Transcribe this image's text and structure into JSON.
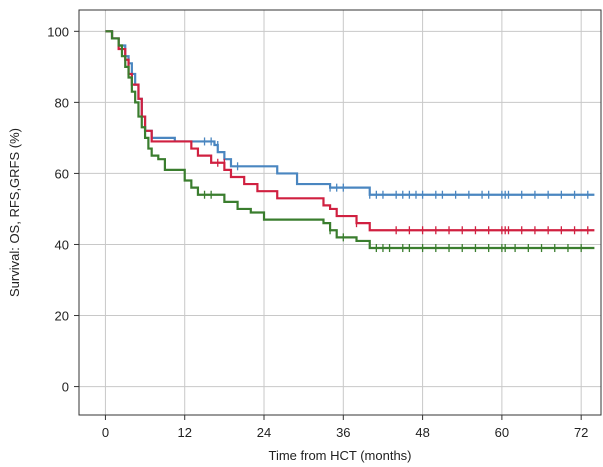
{
  "chart_data": {
    "type": "line",
    "title": "",
    "xlabel": "Time from HCT (months)",
    "ylabel": "Survival: OS, RFS,GRFS (%)",
    "xlim": [
      -4,
      75
    ],
    "ylim": [
      -8,
      106
    ],
    "xticks": [
      0,
      12,
      24,
      36,
      48,
      60,
      72
    ],
    "yticks": [
      0,
      20,
      40,
      60,
      80,
      100
    ],
    "grid": true,
    "legend": "none",
    "series": [
      {
        "color": "#4a86c0",
        "steps": [
          [
            0,
            100
          ],
          [
            1,
            98
          ],
          [
            2,
            96
          ],
          [
            3,
            93
          ],
          [
            3.5,
            91
          ],
          [
            4,
            88
          ],
          [
            4.5,
            85
          ],
          [
            5,
            81
          ],
          [
            5.5,
            76
          ],
          [
            6,
            72
          ],
          [
            7,
            70
          ],
          [
            10,
            70
          ],
          [
            10.5,
            69
          ],
          [
            16,
            69
          ],
          [
            16.5,
            68
          ],
          [
            17,
            66
          ],
          [
            18,
            64
          ],
          [
            19,
            62
          ],
          [
            26,
            60
          ],
          [
            29,
            57
          ],
          [
            34,
            56
          ],
          [
            40,
            54
          ],
          [
            74,
            54
          ]
        ],
        "censors": [
          [
            6,
            72
          ],
          [
            15,
            69
          ],
          [
            16,
            69
          ],
          [
            17,
            68
          ],
          [
            20,
            62
          ],
          [
            34,
            56
          ],
          [
            35,
            56
          ],
          [
            36,
            56
          ],
          [
            40,
            54
          ],
          [
            41,
            54
          ],
          [
            42,
            54
          ],
          [
            44,
            54
          ],
          [
            45,
            54
          ],
          [
            46,
            54
          ],
          [
            47,
            54
          ],
          [
            48,
            54
          ],
          [
            50,
            54
          ],
          [
            51,
            54
          ],
          [
            53,
            54
          ],
          [
            55,
            54
          ],
          [
            57,
            54
          ],
          [
            58,
            54
          ],
          [
            60,
            54
          ],
          [
            60.5,
            54
          ],
          [
            61,
            54
          ],
          [
            63,
            54
          ],
          [
            65,
            54
          ],
          [
            67,
            54
          ],
          [
            69,
            54
          ],
          [
            71,
            54
          ],
          [
            73,
            54
          ]
        ]
      },
      {
        "color": "#d02040",
        "steps": [
          [
            0,
            100
          ],
          [
            1,
            98
          ],
          [
            2,
            95
          ],
          [
            3,
            92
          ],
          [
            3.5,
            88
          ],
          [
            4,
            85
          ],
          [
            5,
            81
          ],
          [
            5.5,
            76
          ],
          [
            6,
            72
          ],
          [
            7,
            69
          ],
          [
            12,
            69
          ],
          [
            13,
            67
          ],
          [
            14,
            65
          ],
          [
            16,
            63
          ],
          [
            18,
            61
          ],
          [
            19,
            59
          ],
          [
            21,
            57
          ],
          [
            23,
            55
          ],
          [
            26,
            53
          ],
          [
            33,
            51
          ],
          [
            34,
            50
          ],
          [
            35,
            48
          ],
          [
            38,
            46
          ],
          [
            40,
            44
          ],
          [
            74,
            44
          ]
        ],
        "censors": [
          [
            17,
            63
          ],
          [
            18,
            63
          ],
          [
            38,
            46
          ],
          [
            44,
            44
          ],
          [
            46,
            44
          ],
          [
            48,
            44
          ],
          [
            50,
            44
          ],
          [
            52,
            44
          ],
          [
            54,
            44
          ],
          [
            56,
            44
          ],
          [
            58,
            44
          ],
          [
            60,
            44
          ],
          [
            60.5,
            44
          ],
          [
            61,
            44
          ],
          [
            63,
            44
          ],
          [
            65,
            44
          ],
          [
            67,
            44
          ],
          [
            69,
            44
          ],
          [
            71,
            44
          ],
          [
            73,
            44
          ]
        ]
      },
      {
        "color": "#3a7d2e",
        "steps": [
          [
            0,
            100
          ],
          [
            1,
            98
          ],
          [
            2,
            96
          ],
          [
            2.5,
            93
          ],
          [
            3,
            90
          ],
          [
            3.5,
            87
          ],
          [
            4,
            83
          ],
          [
            4.5,
            80
          ],
          [
            5,
            76
          ],
          [
            5.5,
            73
          ],
          [
            6,
            70
          ],
          [
            6.5,
            67
          ],
          [
            7,
            65
          ],
          [
            8,
            64
          ],
          [
            9,
            61
          ],
          [
            12,
            58
          ],
          [
            13,
            56
          ],
          [
            14,
            54
          ],
          [
            18,
            52
          ],
          [
            20,
            50
          ],
          [
            22,
            49
          ],
          [
            24,
            47
          ],
          [
            33,
            46
          ],
          [
            34,
            44
          ],
          [
            35,
            42
          ],
          [
            38,
            41
          ],
          [
            40,
            39
          ],
          [
            74,
            39
          ]
        ],
        "censors": [
          [
            15,
            54
          ],
          [
            16,
            54
          ],
          [
            34,
            44
          ],
          [
            36,
            42
          ],
          [
            41,
            39
          ],
          [
            42,
            39
          ],
          [
            43,
            39
          ],
          [
            45,
            39
          ],
          [
            46,
            39
          ],
          [
            48,
            39
          ],
          [
            50,
            39
          ],
          [
            52,
            39
          ],
          [
            54,
            39
          ],
          [
            56,
            39
          ],
          [
            58,
            39
          ],
          [
            60,
            39
          ],
          [
            60.5,
            39
          ],
          [
            62,
            39
          ],
          [
            64,
            39
          ],
          [
            66,
            39
          ],
          [
            68,
            39
          ],
          [
            70,
            39
          ],
          [
            72,
            39
          ]
        ]
      }
    ]
  },
  "axes": {
    "xlabel": "Time from HCT (months)",
    "ylabel": "Survival: OS, RFS,GRFS (%)",
    "xtick_labels": [
      "0",
      "12",
      "24",
      "36",
      "48",
      "60",
      "72"
    ],
    "ytick_labels": [
      "0",
      "20",
      "40",
      "60",
      "80",
      "100"
    ]
  }
}
